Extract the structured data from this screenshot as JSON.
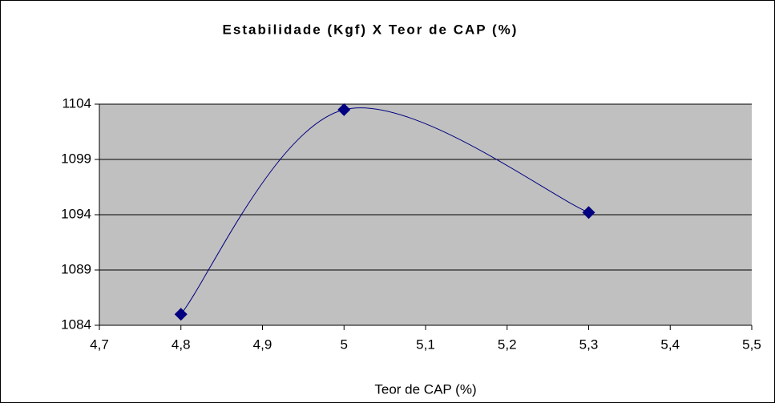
{
  "chart_data": {
    "type": "line",
    "title": "Estabilidade (Kgf) X  Teor de CAP (%)",
    "x_label": "Teor de CAP (%)",
    "x": [
      4.8,
      5.0,
      5.3
    ],
    "series": [
      {
        "color": "#000080",
        "values": [
          1085,
          1103.5,
          1094.2
        ]
      }
    ],
    "xlim": [
      4.7,
      5.5
    ],
    "xticks": [
      {
        "value": 4.7,
        "label": "4,7"
      },
      {
        "value": 4.8,
        "label": "4,8"
      },
      {
        "value": 4.9,
        "label": "4,9"
      },
      5,
      {
        "value": 5.1,
        "label": "5,1"
      },
      {
        "value": 5.2,
        "label": "5,2"
      },
      {
        "value": 5.3,
        "label": "5,3"
      },
      {
        "value": 5.4,
        "label": "5,4"
      },
      {
        "value": 5.5,
        "label": "5,5"
      }
    ],
    "ylim": [
      1084,
      1104
    ],
    "yticks": [
      1084,
      1089,
      1094,
      1099,
      1104
    ],
    "grid": true,
    "smooth": true,
    "plot_background": "#c0c0c0"
  }
}
